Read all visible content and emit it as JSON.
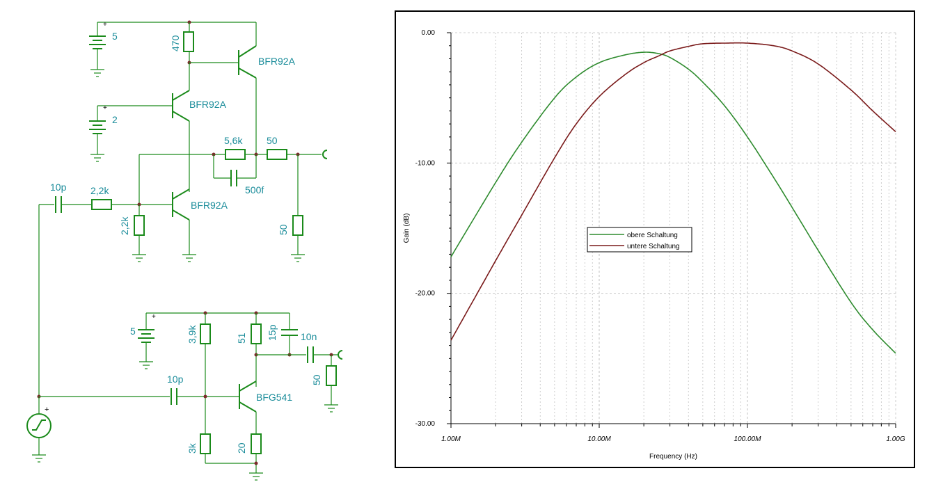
{
  "schematic": {
    "top": {
      "batt1": "5",
      "batt2": "2",
      "r_collector": "470",
      "q1": "BFR92A",
      "q2": "BFR92A",
      "q3": "BFR92A",
      "r_fb": "5,6k",
      "c_fb": "500f",
      "r_series": "50",
      "r_load": "50",
      "c_in": "10p",
      "r_in": "2,2k",
      "r_bias": "2,2k"
    },
    "bottom": {
      "batt": "5",
      "r_bias_top": "3,9k",
      "r_collector": "51",
      "c_15p": "15p",
      "c_10n": "10n",
      "r_load": "50",
      "c_in": "10p",
      "q": "BFG541",
      "r_bias_bot": "3k",
      "r_emitter": "20"
    }
  },
  "plot": {
    "legend": [
      "obere Schaltung",
      "untere Schaltung"
    ],
    "colors": {
      "obere": "#2e8b2e",
      "untere": "#7a1a1a"
    }
  },
  "chart_data": {
    "type": "line",
    "xlabel": "Frequency (Hz)",
    "ylabel": "Gain (dB)",
    "xscale": "log",
    "xlim": [
      1000000,
      1000000000
    ],
    "ylim": [
      -30,
      0
    ],
    "xticks": [
      "1.00M",
      "10.00M",
      "100.00M",
      "1.00G"
    ],
    "yticks": [
      "0.00",
      "-10.00",
      "-20.00",
      "-30.00"
    ],
    "grid": true,
    "legend_position": "center-left",
    "series": [
      {
        "name": "obere Schaltung",
        "x": [
          1000000,
          2000000,
          3000000,
          5000000,
          7000000,
          10000000,
          15000000,
          20000000,
          25000000,
          30000000,
          40000000,
          50000000,
          70000000,
          100000000,
          150000000,
          200000000,
          300000000,
          500000000,
          700000000,
          1000000000
        ],
        "y": [
          -17.2,
          -11.5,
          -8.4,
          -5.0,
          -3.4,
          -2.3,
          -1.7,
          -1.5,
          -1.6,
          -1.9,
          -2.8,
          -3.8,
          -5.6,
          -8.0,
          -11.1,
          -13.4,
          -16.7,
          -20.7,
          -22.8,
          -24.6
        ]
      },
      {
        "name": "untere Schaltung",
        "x": [
          1000000,
          2000000,
          3000000,
          5000000,
          7000000,
          10000000,
          15000000,
          20000000,
          25000000,
          30000000,
          40000000,
          50000000,
          70000000,
          100000000,
          150000000,
          200000000,
          300000000,
          500000000,
          700000000,
          1000000000
        ],
        "y": [
          -23.6,
          -17.5,
          -14.0,
          -9.6,
          -7.0,
          -4.9,
          -3.2,
          -2.3,
          -1.8,
          -1.4,
          -1.05,
          -0.85,
          -0.8,
          -0.8,
          -1.0,
          -1.4,
          -2.4,
          -4.4,
          -6.0,
          -7.6
        ]
      }
    ]
  }
}
